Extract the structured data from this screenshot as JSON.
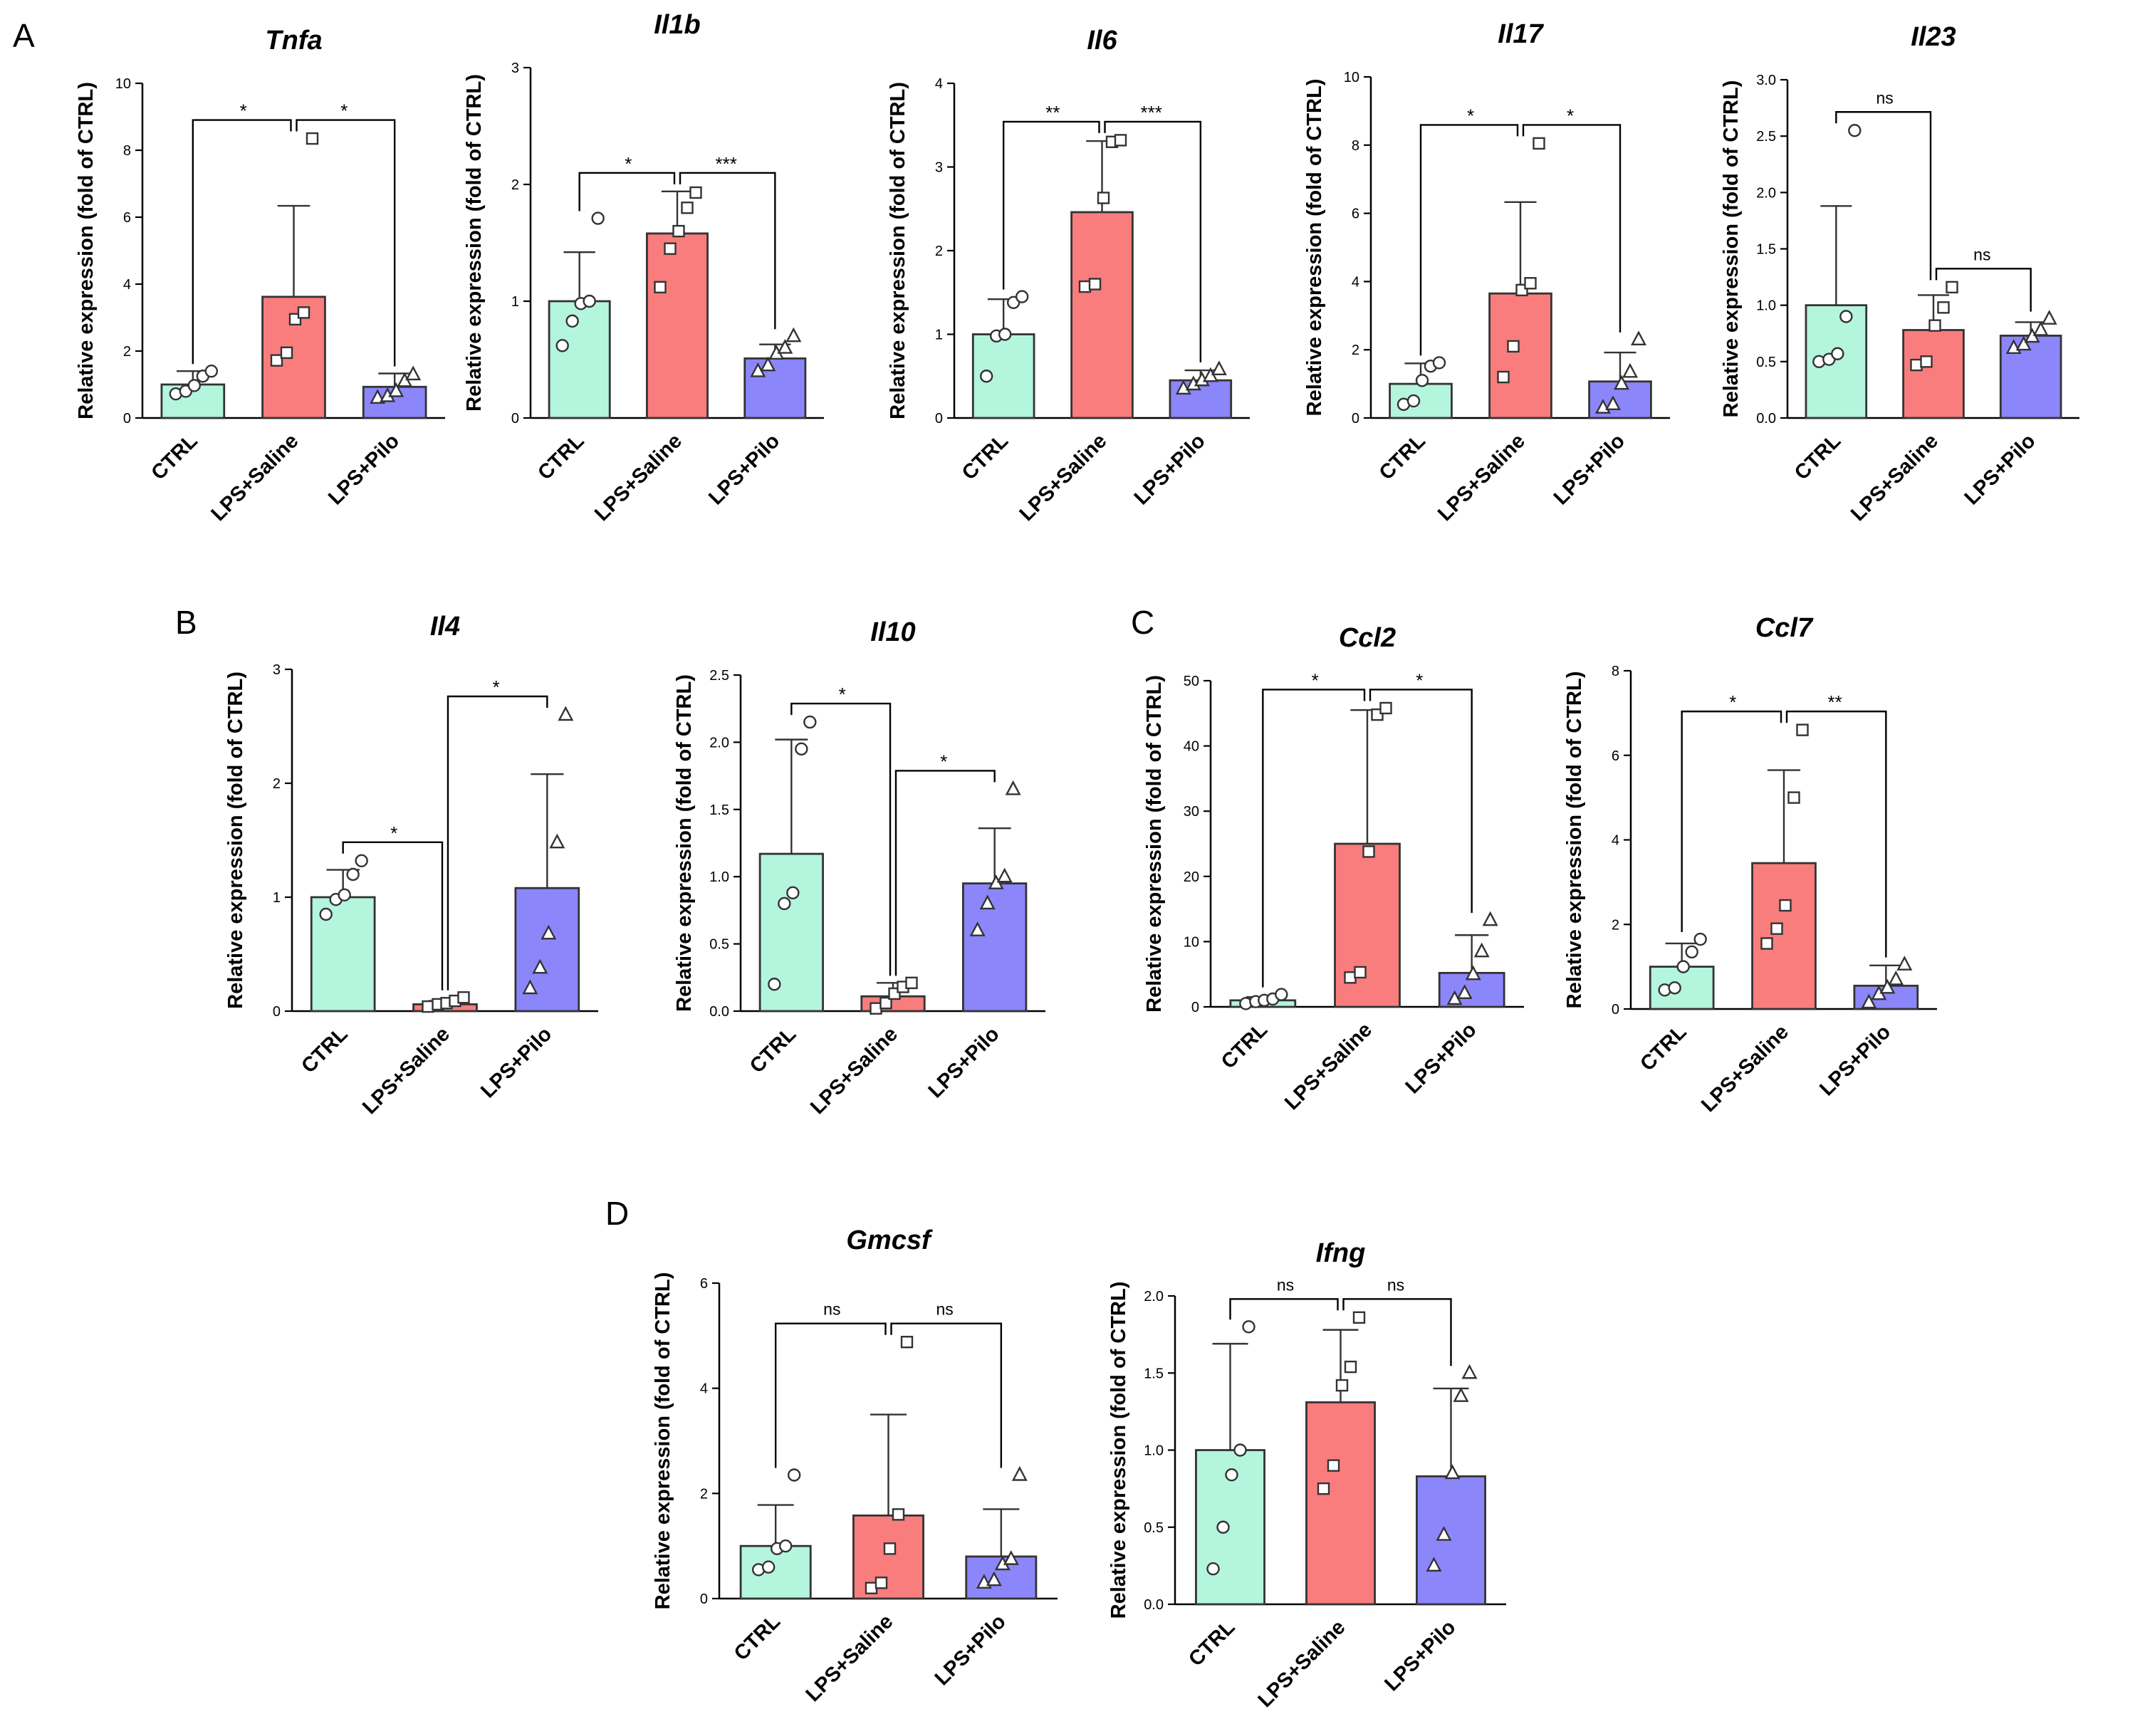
{
  "figure": {
    "panel_letters": [
      "A",
      "B",
      "C",
      "D"
    ],
    "colors": {
      "CTRL": "#b3f5dd",
      "LPS+Saline": "#f97d7d",
      "LPS+Pilo": "#8c86fb",
      "outline": "#333333",
      "marker_fill": "#ffffff"
    },
    "marker_shapes": {
      "CTRL": "circle",
      "LPS+Saline": "square",
      "LPS+Pilo": "triangle"
    }
  },
  "chart_data": [
    {
      "panel": "A",
      "type": "bar",
      "title": "Tnfa",
      "ylabel": "Relative expression (fold of CTRL)",
      "categories": [
        "CTRL",
        "LPS+Saline",
        "LPS+Pilo"
      ],
      "ylim": [
        0,
        10
      ],
      "yticks": [
        "0",
        "2",
        "4",
        "6",
        "8",
        "10"
      ],
      "values": [
        1.0,
        3.62,
        0.93
      ],
      "errors": [
        0.4,
        2.72,
        0.4
      ],
      "points": [
        [
          0.72,
          0.8,
          0.97,
          1.25,
          1.4
        ],
        [
          1.72,
          1.95,
          2.95,
          3.15,
          8.35
        ],
        [
          0.6,
          0.65,
          0.8,
          1.1,
          1.3
        ]
      ],
      "significance": [
        {
          "label": "*",
          "from": 0,
          "to": 1
        },
        {
          "label": "*",
          "from": 1,
          "to": 2
        }
      ]
    },
    {
      "panel": "A",
      "type": "bar",
      "title": "Il1b",
      "ylabel": "Relative expression (fold of CTRL)",
      "categories": [
        "CTRL",
        "LPS+Saline",
        "LPS+Pilo"
      ],
      "ylim": [
        0,
        3
      ],
      "yticks": [
        "0",
        "1",
        "2",
        "3"
      ],
      "values": [
        1.0,
        1.58,
        0.51
      ],
      "errors": [
        0.42,
        0.36,
        0.12
      ],
      "points": [
        [
          0.62,
          0.83,
          0.98,
          1.0,
          1.71
        ],
        [
          1.12,
          1.45,
          1.6,
          1.8,
          1.93
        ],
        [
          0.4,
          0.45,
          0.55,
          0.6,
          0.7
        ]
      ],
      "significance": [
        {
          "label": "*",
          "from": 0,
          "to": 1
        },
        {
          "label": "***",
          "from": 1,
          "to": 2
        }
      ]
    },
    {
      "panel": "A",
      "type": "bar",
      "title": "Il6",
      "ylabel": "Relative expression (fold of CTRL)",
      "categories": [
        "CTRL",
        "LPS+Saline",
        "LPS+Pilo"
      ],
      "ylim": [
        0,
        4
      ],
      "yticks": [
        "0",
        "1",
        "2",
        "3",
        "4"
      ],
      "values": [
        1.0,
        2.46,
        0.45
      ],
      "errors": [
        0.42,
        0.85,
        0.12
      ],
      "points": [
        [
          0.5,
          0.98,
          1.0,
          1.38,
          1.45
        ],
        [
          1.57,
          1.6,
          2.63,
          3.3,
          3.32
        ],
        [
          0.35,
          0.4,
          0.45,
          0.5,
          0.58
        ]
      ],
      "significance": [
        {
          "label": "**",
          "from": 0,
          "to": 1
        },
        {
          "label": "***",
          "from": 1,
          "to": 2
        }
      ]
    },
    {
      "panel": "A",
      "type": "bar",
      "title": "Il17",
      "ylabel": "Relative expression (fold of CTRL)",
      "categories": [
        "CTRL",
        "LPS+Saline",
        "LPS+Pilo"
      ],
      "ylim": [
        0,
        10
      ],
      "yticks": [
        "0",
        "2",
        "4",
        "6",
        "8",
        "10"
      ],
      "values": [
        1.0,
        3.65,
        1.07
      ],
      "errors": [
        0.6,
        2.68,
        0.85
      ],
      "points": [
        [
          0.4,
          0.5,
          1.1,
          1.52,
          1.62
        ],
        [
          1.2,
          2.1,
          3.75,
          3.95,
          8.05
        ],
        [
          0.3,
          0.4,
          1.0,
          1.35,
          2.3
        ]
      ],
      "significance": [
        {
          "label": "*",
          "from": 0,
          "to": 1
        },
        {
          "label": "*",
          "from": 1,
          "to": 2
        }
      ]
    },
    {
      "panel": "A",
      "type": "bar",
      "title": "Il23",
      "ylabel": "Relative expression (fold of CTRL)",
      "categories": [
        "CTRL",
        "LPS+Saline",
        "LPS+Pilo"
      ],
      "ylim": [
        0,
        3
      ],
      "yticks": [
        "0.0",
        "0.5",
        "1.0",
        "1.5",
        "2.0",
        "2.5",
        "3.0"
      ],
      "values": [
        1.0,
        0.78,
        0.73
      ],
      "errors": [
        0.88,
        0.31,
        0.12
      ],
      "points": [
        [
          0.5,
          0.52,
          0.57,
          0.9,
          2.55
        ],
        [
          0.47,
          0.5,
          0.82,
          0.98,
          1.16
        ],
        [
          0.62,
          0.65,
          0.72,
          0.78,
          0.88
        ]
      ],
      "significance": [
        {
          "label": "ns",
          "from": 0,
          "to": 1
        },
        {
          "label": "ns",
          "from": 1,
          "to": 2
        }
      ]
    },
    {
      "panel": "B",
      "type": "bar",
      "title": "Il4",
      "ylabel": "Relative expression (fold of CTRL)",
      "categories": [
        "CTRL",
        "LPS+Saline",
        "LPS+Pilo"
      ],
      "ylim": [
        0,
        3
      ],
      "yticks": [
        "0",
        "1",
        "2",
        "3"
      ],
      "values": [
        1.0,
        0.06,
        1.08
      ],
      "errors": [
        0.24,
        0.03,
        1.0
      ],
      "points": [
        [
          0.85,
          0.98,
          1.02,
          1.2,
          1.32
        ],
        [
          0.04,
          0.06,
          0.07,
          0.09,
          0.12
        ],
        [
          0.2,
          0.38,
          0.68,
          1.48,
          2.6
        ]
      ],
      "significance": [
        {
          "label": "*",
          "from": 0,
          "to": 1
        },
        {
          "label": "*",
          "from": 1,
          "to": 2
        }
      ]
    },
    {
      "panel": "B",
      "type": "bar",
      "title": "Il10",
      "ylabel": "Relative expression (fold of CTRL)",
      "categories": [
        "CTRL",
        "LPS+Saline",
        "LPS+Pilo"
      ],
      "ylim": [
        0,
        2.5
      ],
      "yticks": [
        "0.0",
        "0.5",
        "1.0",
        "1.5",
        "2.0",
        "2.5"
      ],
      "values": [
        1.17,
        0.11,
        0.95
      ],
      "errors": [
        0.85,
        0.1,
        0.41
      ],
      "points": [
        [
          0.2,
          0.8,
          0.88,
          1.95,
          2.15
        ],
        [
          0.02,
          0.06,
          0.13,
          0.18,
          0.21
        ],
        [
          0.6,
          0.8,
          0.95,
          1.0,
          1.65
        ]
      ],
      "significance": [
        {
          "label": "*",
          "from": 0,
          "to": 1
        },
        {
          "label": "*",
          "from": 1,
          "to": 2
        }
      ]
    },
    {
      "panel": "C",
      "type": "bar",
      "title": "Ccl2",
      "ylabel": "Relative expression (fold of CTRL)",
      "categories": [
        "CTRL",
        "LPS+Saline",
        "LPS+Pilo"
      ],
      "ylim": [
        0,
        50
      ],
      "yticks": [
        "0",
        "10",
        "20",
        "30",
        "40",
        "50"
      ],
      "values": [
        1.0,
        25.0,
        5.2
      ],
      "errors": [
        0.5,
        20.5,
        5.8
      ],
      "points": [
        [
          0.5,
          0.8,
          1.0,
          1.2,
          1.9
        ],
        [
          4.5,
          5.3,
          23.8,
          44.8,
          45.8
        ],
        [
          1.2,
          2.1,
          5.0,
          8.5,
          13.3
        ]
      ],
      "significance": [
        {
          "label": "*",
          "from": 0,
          "to": 1
        },
        {
          "label": "*",
          "from": 1,
          "to": 2
        }
      ]
    },
    {
      "panel": "C",
      "type": "bar",
      "title": "Ccl7",
      "ylabel": "Relative expression (fold of CTRL)",
      "categories": [
        "CTRL",
        "LPS+Saline",
        "LPS+Pilo"
      ],
      "ylim": [
        0,
        8
      ],
      "yticks": [
        "0",
        "2",
        "4",
        "6",
        "8"
      ],
      "values": [
        1.0,
        3.45,
        0.55
      ],
      "errors": [
        0.55,
        2.2,
        0.48
      ],
      "points": [
        [
          0.45,
          0.5,
          1.0,
          1.35,
          1.65
        ],
        [
          1.55,
          1.9,
          2.45,
          5.0,
          6.6
        ],
        [
          0.15,
          0.35,
          0.5,
          0.7,
          1.05
        ]
      ],
      "significance": [
        {
          "label": "*",
          "from": 0,
          "to": 1
        },
        {
          "label": "**",
          "from": 1,
          "to": 2
        }
      ]
    },
    {
      "panel": "D",
      "type": "bar",
      "title": "Gmcsf",
      "ylabel": "Relative expression (fold of CTRL)",
      "categories": [
        "CTRL",
        "LPS+Saline",
        "LPS+Pilo"
      ],
      "ylim": [
        0,
        6
      ],
      "yticks": [
        "0",
        "2",
        "4",
        "6"
      ],
      "values": [
        1.0,
        1.58,
        0.8
      ],
      "errors": [
        0.78,
        1.92,
        0.9
      ],
      "points": [
        [
          0.55,
          0.6,
          0.95,
          1.0,
          2.35
        ],
        [
          0.2,
          0.3,
          0.95,
          1.6,
          4.88
        ],
        [
          0.3,
          0.35,
          0.65,
          0.75,
          2.35
        ]
      ],
      "significance": [
        {
          "label": "ns",
          "from": 0,
          "to": 1
        },
        {
          "label": "ns",
          "from": 1,
          "to": 2
        }
      ]
    },
    {
      "panel": "D",
      "type": "bar",
      "title": "Ifng",
      "ylabel": "Relative expression (fold of CTRL)",
      "categories": [
        "CTRL",
        "LPS+Saline",
        "LPS+Pilo"
      ],
      "ylim": [
        0,
        2
      ],
      "yticks": [
        "0.0",
        "0.5",
        "1.0",
        "1.5",
        "2.0"
      ],
      "values": [
        1.0,
        1.31,
        0.83
      ],
      "errors": [
        0.69,
        0.47,
        0.57
      ],
      "points": [
        [
          0.23,
          0.5,
          0.84,
          1.0,
          1.8
        ],
        [
          0.75,
          0.9,
          1.42,
          1.54,
          1.86
        ],
        [
          0.25,
          0.45,
          0.85,
          1.35,
          1.5
        ]
      ],
      "significance": [
        {
          "label": "ns",
          "from": 0,
          "to": 1
        },
        {
          "label": "ns",
          "from": 1,
          "to": 2
        }
      ]
    }
  ]
}
